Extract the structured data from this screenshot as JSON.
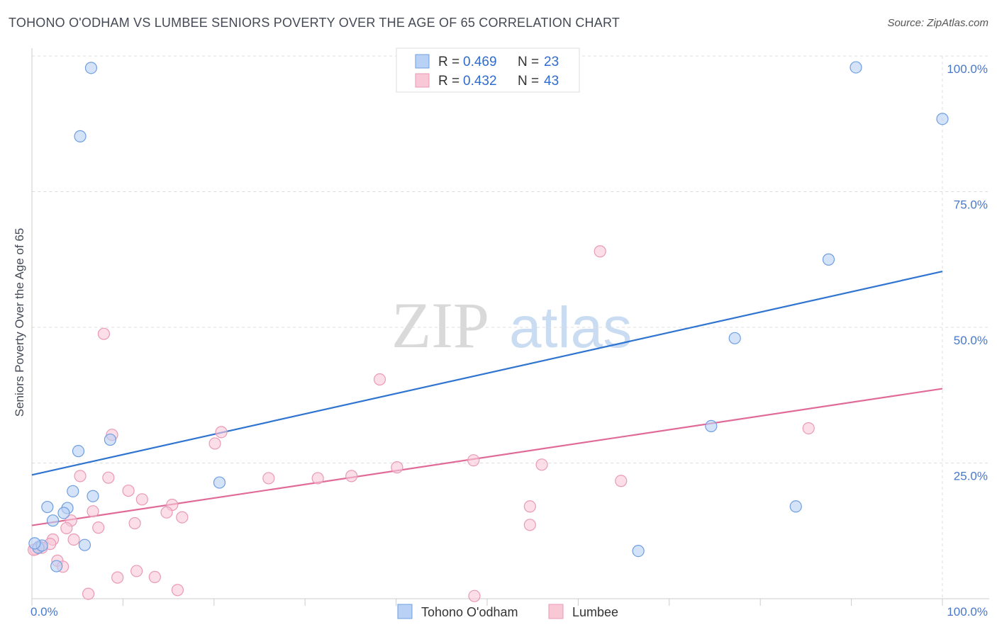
{
  "title": "TOHONO O'ODHAM VS LUMBEE SENIORS POVERTY OVER THE AGE OF 65 CORRELATION CHART",
  "source": "Source: ZipAtlas.com",
  "watermark": {
    "zip": "ZIP",
    "atlas": "atlas"
  },
  "colors": {
    "blue_fill": "#b9d1f5",
    "blue_stroke": "#6e9ee0",
    "blue_line": "#2f74d0",
    "pink_fill": "#f8c8d7",
    "pink_stroke": "#e99ab5",
    "pink_line": "#e06b98",
    "grid": "#dddddd",
    "tick_text": "#4a78c9"
  },
  "chart_data": {
    "type": "scatter",
    "ylabel": "Seniors Poverty Over the Age of 65",
    "xlim": [
      0,
      100
    ],
    "ylim": [
      0,
      100
    ],
    "y_ticks": [
      {
        "value": 25,
        "label": "25.0%"
      },
      {
        "value": 50,
        "label": "50.0%"
      },
      {
        "value": 75,
        "label": "75.0%"
      },
      {
        "value": 100,
        "label": "100.0%"
      }
    ],
    "x_tick_labels": {
      "min": "0.0%",
      "max": "100.0%"
    },
    "legend": [
      {
        "series": "Tohono O'odham",
        "r_label": "R =",
        "r": "0.469",
        "n_label": "N =",
        "n": "23"
      },
      {
        "series": "Lumbee",
        "r_label": "R =",
        "r": "0.432",
        "n_label": "N =",
        "n": "43"
      }
    ],
    "series": [
      {
        "name": "Tohono O'odham",
        "color": "blue",
        "trend": {
          "x0": 0,
          "y0": 22.8,
          "x1": 100,
          "y1": 60.3
        },
        "points": [
          [
            6.5,
            97.8
          ],
          [
            5.3,
            85.2
          ],
          [
            8.6,
            29.3
          ],
          [
            5.1,
            27.2
          ],
          [
            20.6,
            21.4
          ],
          [
            4.5,
            19.8
          ],
          [
            6.7,
            18.9
          ],
          [
            1.7,
            16.9
          ],
          [
            3.9,
            16.7
          ],
          [
            3.5,
            15.8
          ],
          [
            2.3,
            14.4
          ],
          [
            0.7,
            9.4
          ],
          [
            1.1,
            9.8
          ],
          [
            5.8,
            9.9
          ],
          [
            2.7,
            6.0
          ],
          [
            87.5,
            62.5
          ],
          [
            77.2,
            48.0
          ],
          [
            74.6,
            31.8
          ],
          [
            83.9,
            17.0
          ],
          [
            66.6,
            8.8
          ],
          [
            90.5,
            97.9
          ],
          [
            100.0,
            88.4
          ],
          [
            0.3,
            10.2
          ]
        ]
      },
      {
        "name": "Lumbee",
        "color": "pink",
        "trend": {
          "x0": 0,
          "y0": 13.5,
          "x1": 100,
          "y1": 38.7
        },
        "points": [
          [
            62.4,
            64.0
          ],
          [
            7.9,
            48.8
          ],
          [
            38.2,
            40.4
          ],
          [
            8.8,
            30.2
          ],
          [
            20.8,
            30.7
          ],
          [
            20.1,
            28.6
          ],
          [
            48.5,
            25.5
          ],
          [
            40.1,
            24.2
          ],
          [
            56.0,
            24.7
          ],
          [
            26.0,
            22.2
          ],
          [
            31.4,
            22.2
          ],
          [
            64.7,
            21.7
          ],
          [
            5.3,
            22.6
          ],
          [
            8.4,
            22.3
          ],
          [
            10.6,
            19.9
          ],
          [
            12.1,
            18.3
          ],
          [
            15.4,
            17.3
          ],
          [
            6.7,
            16.1
          ],
          [
            14.8,
            15.9
          ],
          [
            16.5,
            15.0
          ],
          [
            4.3,
            14.4
          ],
          [
            11.3,
            13.9
          ],
          [
            7.3,
            13.1
          ],
          [
            3.8,
            13.0
          ],
          [
            2.3,
            10.9
          ],
          [
            4.6,
            10.9
          ],
          [
            0.8,
            9.6
          ],
          [
            2.0,
            10.1
          ],
          [
            1.1,
            9.4
          ],
          [
            0.4,
            9.1
          ],
          [
            2.8,
            7.0
          ],
          [
            3.4,
            5.9
          ],
          [
            11.5,
            5.1
          ],
          [
            9.4,
            3.9
          ],
          [
            13.5,
            4.0
          ],
          [
            16.0,
            1.6
          ],
          [
            6.2,
            0.9
          ],
          [
            48.6,
            0.5
          ],
          [
            54.7,
            17.0
          ],
          [
            54.7,
            13.6
          ],
          [
            85.3,
            31.4
          ],
          [
            35.1,
            22.6
          ],
          [
            0.2,
            9.0
          ]
        ]
      }
    ]
  }
}
